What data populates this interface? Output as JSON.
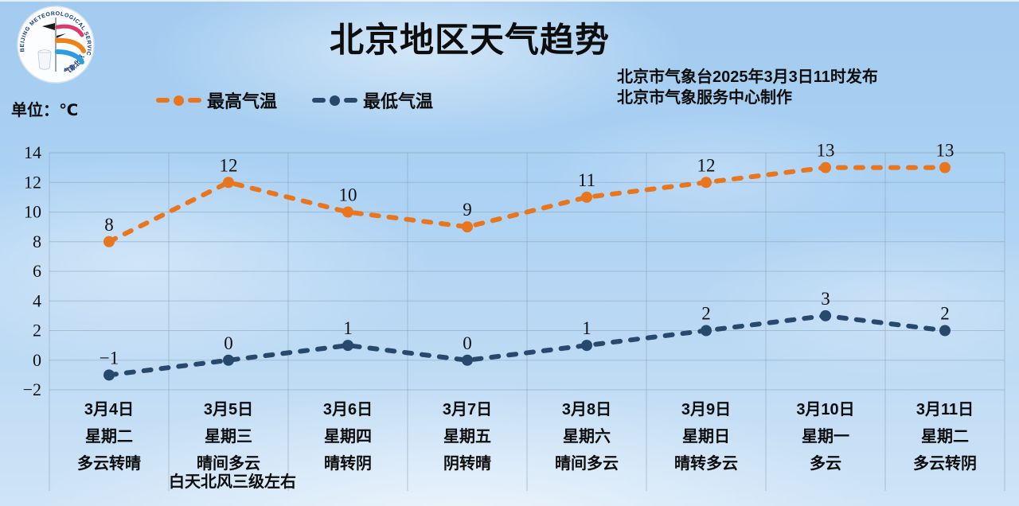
{
  "header": {
    "title": "北京地区天气趋势",
    "publish_line1": "北京市气象台2025年3月3日11时发布",
    "publish_line2": "北京市气象服务中心制作",
    "unit_label": "单位：℃",
    "logo": {
      "ring_text": "BEIJING METEOROLOGICAL SERVICE",
      "ring_text_cn": "气象北京"
    }
  },
  "legend": [
    {
      "label": "最高气温",
      "color": "#e8761f"
    },
    {
      "label": "最低气温",
      "color": "#27496d"
    }
  ],
  "chart_data": {
    "type": "line",
    "title": "北京地区天气趋势",
    "categories": [
      "3月4日",
      "3月5日",
      "3月6日",
      "3月7日",
      "3月8日",
      "3月9日",
      "3月10日",
      "3月11日"
    ],
    "weekdays": [
      "星期二",
      "星期三",
      "星期四",
      "星期五",
      "星期六",
      "星期日",
      "星期一",
      "星期二"
    ],
    "weather": [
      [
        "多云转晴"
      ],
      [
        "晴间多云",
        "白天北风三级左右"
      ],
      [
        "晴转阴"
      ],
      [
        "阴转晴"
      ],
      [
        "晴间多云"
      ],
      [
        "晴转多云"
      ],
      [
        "多云"
      ],
      [
        "多云转阴"
      ]
    ],
    "series": [
      {
        "key": "high-temp",
        "name": "最高气温",
        "color": "#e8761f",
        "values": [
          8,
          12,
          10,
          9,
          11,
          12,
          13,
          13
        ]
      },
      {
        "key": "low-temp",
        "name": "最低气温",
        "color": "#27496d",
        "values": [
          -1,
          0,
          1,
          0,
          1,
          2,
          3,
          2
        ]
      }
    ],
    "ylabel": "单位：℃",
    "ylim": [
      -2,
      14
    ],
    "yticks": [
      14,
      12,
      10,
      8,
      6,
      4,
      2,
      0,
      -2
    ],
    "grid": true,
    "gridline_color": "#8ba1b4",
    "legend_position": "top-left"
  }
}
